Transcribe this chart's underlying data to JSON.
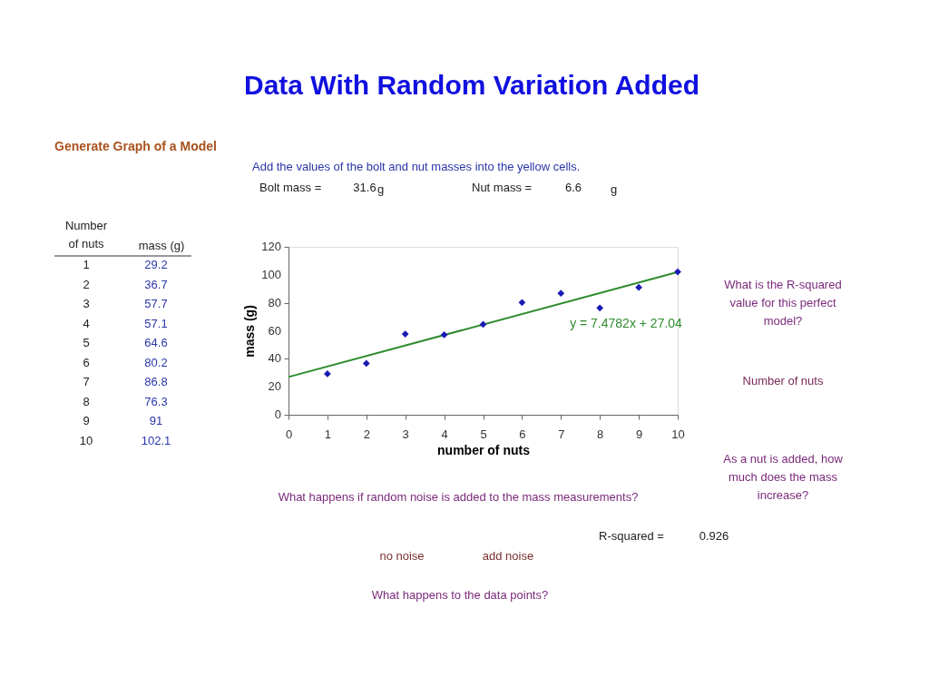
{
  "chart_data": {
    "type": "scatter",
    "title": "Data With Random Variation Added",
    "xlabel": "number of nuts",
    "ylabel": "mass (g)",
    "xlim": [
      0,
      10
    ],
    "xticks": [
      0,
      1,
      2,
      3,
      4,
      5,
      6,
      7,
      8,
      9,
      10
    ],
    "ylim": [
      0,
      120
    ],
    "yticks": [
      0,
      20,
      40,
      60,
      80,
      100,
      120
    ],
    "series": [
      {
        "marker": "diamond",
        "color": "#1a1ab4",
        "x": [
          1,
          2,
          3,
          4,
          5,
          6,
          7,
          8,
          9,
          10
        ],
        "values": [
          29.2,
          36.7,
          57.7,
          57.1,
          64.6,
          80.2,
          86.8,
          76.3,
          91,
          102.1
        ]
      },
      {
        "type": "line",
        "line_style": "solid",
        "color": "#2e8b2e",
        "x": [
          0,
          10
        ],
        "values": [
          27,
          102
        ]
      }
    ],
    "annotations": [
      "Generate Graph of a Model",
      "Add the values of the bolt and nut masses into the yellow cells.",
      "Bolt mass =",
      "31.6",
      "g",
      "Nut mass =",
      "6.6",
      "g",
      "Number of nuts",
      "mass (g)",
      "What is the R-squared value for this perfect model?",
      "Number of nuts",
      "As a nut is added, how much does the mass increase?",
      "What happens if random noise is added to the mass measurements?",
      "no noise",
      "add noise",
      "R-squared =",
      "0.926",
      "What happens to the data points?",
      "y = 7.4782x + 27.04",
      "1",
      "29.2",
      "2",
      "36.7",
      "3",
      "57.7",
      "4",
      "57.1",
      "5",
      "64.6",
      "6",
      "80.2",
      "7",
      "86.8",
      "8",
      "76.3",
      "9",
      "91",
      "10",
      "102.1"
    ]
  }
}
